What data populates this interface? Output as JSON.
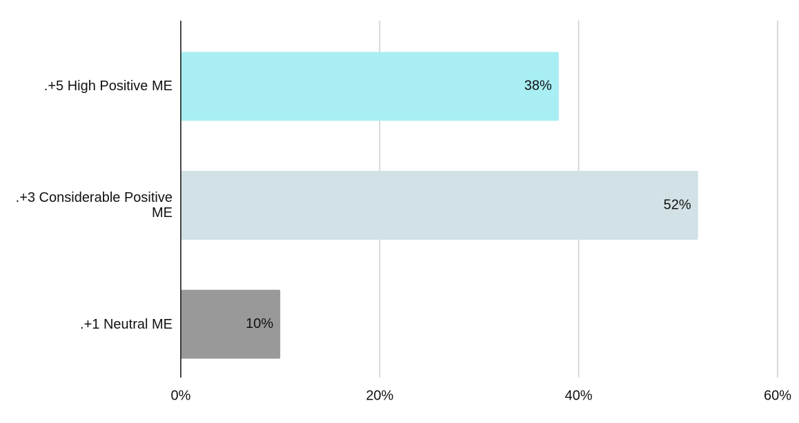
{
  "chart_data": {
    "type": "bar",
    "orientation": "horizontal",
    "categories": [
      ".+5 High Positive ME",
      ".+3 Considerable Positive ME",
      ".+1 Neutral ME"
    ],
    "values": [
      38,
      52,
      10
    ],
    "value_labels": [
      "38%",
      "52%",
      "10%"
    ],
    "colors": [
      "#a8eef3",
      "#d1e1e5",
      "#999999"
    ],
    "xlim": [
      0,
      60
    ],
    "xticks": [
      {
        "value": 0,
        "label": "0%"
      },
      {
        "value": 20,
        "label": "20%"
      },
      {
        "value": 40,
        "label": "40%"
      },
      {
        "value": 60,
        "label": "60%"
      }
    ],
    "grid": true
  }
}
